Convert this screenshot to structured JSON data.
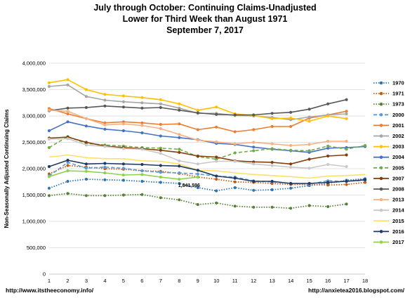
{
  "header": {
    "title_line1": "July through October:  Continuing Claims-Unadjusted",
    "title_line2": "Lower for Third Week than August 1971",
    "title_line3": "September 7, 2017"
  },
  "footer": {
    "source_left": "http://www.itstheeconomy.info/",
    "source_right": "http://anxietea2016.blogspot.com/"
  },
  "chart_data": {
    "type": "line",
    "title": "July through October:  Continuing Claims-Unadjusted",
    "ylabel": "Non-Seasonally Adjusted Continuing Claims",
    "xlabel": "",
    "x": [
      1,
      2,
      3,
      4,
      5,
      6,
      7,
      8,
      9,
      10,
      11,
      12,
      13,
      14,
      15,
      16,
      17,
      18
    ],
    "xlim": [
      1,
      18
    ],
    "ylim": [
      0,
      4000000
    ],
    "yticks": [
      0,
      500000,
      1000000,
      1500000,
      2000000,
      2500000,
      3000000,
      3500000,
      4000000
    ],
    "ytick_labels": [
      "0",
      "500,000",
      "1,000,000",
      "1,500,000",
      "2,000,000",
      "2,500,000",
      "3,000,000",
      "3,500,000",
      "4,000,000"
    ],
    "grid": "horizontal",
    "legend_position": "right",
    "annotation": {
      "text": "1,841,596",
      "x": 9,
      "y": 1841596
    },
    "series": [
      {
        "name": "1970",
        "color": "#2e75b6",
        "style": "dotted",
        "marker": "circle",
        "values": [
          1630000,
          1760000,
          1800000,
          1790000,
          1780000,
          1760000,
          1740000,
          1720000,
          1640000,
          1580000,
          1640000,
          1590000,
          1600000,
          1630000,
          1680000,
          1720000,
          1780000,
          1810000
        ]
      },
      {
        "name": "1971",
        "color": "#c55a11",
        "style": "dotted",
        "marker": "circle",
        "values": [
          1900000,
          2060000,
          2030000,
          2000000,
          1990000,
          1960000,
          1950000,
          1910000,
          1841596,
          1800000,
          1750000,
          1740000,
          1720000,
          1700000,
          1700000,
          1690000,
          1700000,
          1740000
        ]
      },
      {
        "name": "1973",
        "color": "#548235",
        "style": "dotted",
        "marker": "circle",
        "values": [
          1490000,
          1530000,
          1490000,
          1490000,
          1500000,
          1510000,
          1450000,
          1410000,
          1320000,
          1350000,
          1290000,
          1270000,
          1270000,
          1250000,
          1300000,
          1280000,
          1330000,
          null
        ]
      },
      {
        "name": "2000",
        "color": "#5b9bd5",
        "style": "dashed",
        "marker": "circle",
        "values": [
          1860000,
          2120000,
          2010000,
          2030000,
          2010000,
          1960000,
          1930000,
          1920000,
          1900000,
          1860000,
          1840000,
          1770000,
          1750000,
          1720000,
          1710000,
          1770000,
          1760000,
          1780000
        ]
      },
      {
        "name": "2001",
        "color": "#ed7d31",
        "style": "solid",
        "marker": "circle",
        "values": [
          3140000,
          3040000,
          2950000,
          2870000,
          2890000,
          2870000,
          2840000,
          2850000,
          2740000,
          2790000,
          2700000,
          2740000,
          2800000,
          2800000,
          2960000,
          3020000,
          3090000,
          null
        ]
      },
      {
        "name": "2002",
        "color": "#a5a5a5",
        "style": "solid",
        "marker": "circle",
        "values": [
          3560000,
          3590000,
          3370000,
          3300000,
          3270000,
          3250000,
          3230000,
          3150000,
          3050000,
          3050000,
          3010000,
          3000000,
          2970000,
          2930000,
          2980000,
          3020000,
          3040000,
          null
        ]
      },
      {
        "name": "2003",
        "color": "#ffc000",
        "style": "solid",
        "marker": "circle",
        "values": [
          3630000,
          3690000,
          3500000,
          3410000,
          3380000,
          3350000,
          3310000,
          3230000,
          3110000,
          3170000,
          3040000,
          3010000,
          2950000,
          2960000,
          2900000,
          3000000,
          2950000,
          null
        ]
      },
      {
        "name": "2004",
        "color": "#4472c4",
        "style": "solid",
        "marker": "circle",
        "values": [
          2720000,
          2890000,
          2810000,
          2750000,
          2720000,
          2680000,
          2620000,
          2590000,
          2550000,
          2480000,
          2460000,
          2410000,
          2370000,
          2340000,
          2310000,
          2390000,
          2400000,
          2420000
        ]
      },
      {
        "name": "2005",
        "color": "#70ad47",
        "style": "dashed",
        "marker": "circle",
        "values": [
          2400000,
          2610000,
          2480000,
          2450000,
          2430000,
          2400000,
          2390000,
          2370000,
          2230000,
          2180000,
          2300000,
          2340000,
          2380000,
          2350000,
          2340000,
          2430000,
          2370000,
          2440000
        ]
      },
      {
        "name": "2007",
        "color": "#843c0c",
        "style": "solid",
        "marker": "circle",
        "values": [
          2580000,
          2600000,
          2500000,
          2430000,
          2400000,
          2380000,
          2350000,
          2310000,
          2240000,
          2220000,
          2150000,
          2130000,
          2120000,
          2090000,
          2180000,
          2240000,
          2260000,
          null
        ]
      },
      {
        "name": "2008",
        "color": "#595959",
        "style": "solid",
        "marker": "circle",
        "values": [
          3100000,
          3150000,
          3160000,
          3190000,
          3170000,
          3150000,
          3160000,
          3110000,
          3060000,
          3030000,
          3020000,
          3020000,
          3050000,
          3070000,
          3130000,
          3230000,
          3310000,
          null
        ]
      },
      {
        "name": "2013",
        "color": "#f4b183",
        "style": "solid",
        "marker": "circle",
        "values": [
          3110000,
          3090000,
          2950000,
          2830000,
          2850000,
          2820000,
          2760000,
          2650000,
          2540000,
          2510000,
          2470000,
          2500000,
          2470000,
          2440000,
          2460000,
          2520000,
          2520000,
          null
        ]
      },
      {
        "name": "2014",
        "color": "#c9c9c9",
        "style": "solid",
        "marker": "circle",
        "values": [
          2560000,
          2570000,
          2450000,
          2420000,
          2380000,
          2370000,
          2290000,
          2150000,
          2090000,
          2140000,
          2140000,
          2090000,
          2060000,
          2030000,
          2010000,
          2080000,
          2040000,
          null
        ]
      },
      {
        "name": "2015",
        "color": "#ffe066",
        "style": "solid",
        "marker": "none",
        "values": [
          2220000,
          2260000,
          2210000,
          2190000,
          2190000,
          2150000,
          2140000,
          2090000,
          1970000,
          1960000,
          1920000,
          1890000,
          1870000,
          1850000,
          1820000,
          1860000,
          1870000,
          1890000
        ]
      },
      {
        "name": "2016",
        "color": "#203864",
        "style": "solid",
        "marker": "circle",
        "values": [
          2040000,
          2160000,
          2090000,
          2100000,
          2090000,
          2080000,
          2060000,
          2050000,
          1970000,
          1860000,
          1820000,
          1760000,
          1760000,
          1720000,
          1720000,
          1740000,
          1760000,
          1790000
        ]
      },
      {
        "name": "2017",
        "color": "#8fd14f",
        "style": "solid",
        "marker": "circle",
        "values": [
          1850000,
          1960000,
          1950000,
          1920000,
          1880000,
          1890000,
          1840000,
          1800000,
          1841596,
          null,
          null,
          null,
          null,
          null,
          null,
          null,
          null,
          null
        ]
      }
    ]
  }
}
